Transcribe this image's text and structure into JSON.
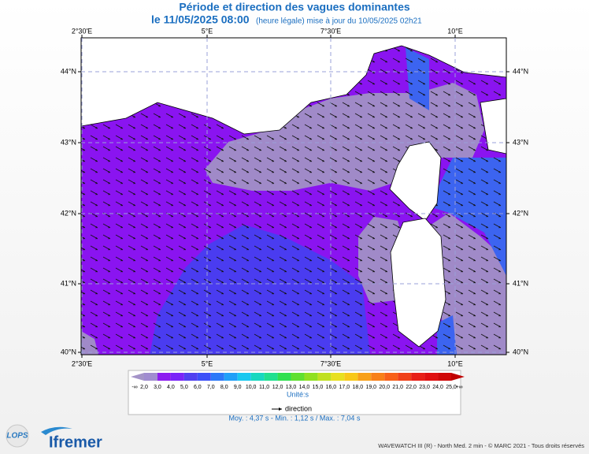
{
  "header": {
    "title": "Période et direction des vagues dominantes",
    "date": "le 11/05/2025 08:00",
    "update": "(heure légale) mise à jour du 10/05/2025 02h21"
  },
  "map": {
    "top_labels": [
      "2°30'E",
      "5°E",
      "7°30'E",
      "10°E"
    ],
    "bottom_labels": [
      "2°30'E",
      "5°E",
      "7°30'E",
      "10°E"
    ],
    "left_labels": [
      "44°N",
      "43°N",
      "42°N",
      "41°N",
      "40°N"
    ],
    "right_labels": [
      "44°N",
      "43°N",
      "42°N",
      "41°N",
      "40°N"
    ]
  },
  "legend": {
    "low": "-∞",
    "high": "+∞",
    "labels": [
      "2,0",
      "3,0",
      "4,0",
      "5,0",
      "6,0",
      "7,0",
      "8,0",
      "9,0",
      "10,0",
      "11,0",
      "12,0",
      "13,0",
      "14,0",
      "15,0",
      "16,0",
      "17,0",
      "18,0",
      "19,0",
      "20,0",
      "21,0",
      "22,0",
      "23,0",
      "24,0",
      "25,0"
    ],
    "colors": [
      "#a494c8",
      "#a08cd0",
      "#8c1cf0",
      "#7a24f8",
      "#5040f0",
      "#3c50f8",
      "#2c78f8",
      "#20a0f8",
      "#18c8f0",
      "#18d8c0",
      "#20e090",
      "#30e050",
      "#60e030",
      "#90e020",
      "#c0e020",
      "#e8e020",
      "#f8c818",
      "#f8a018",
      "#f88018",
      "#f86018",
      "#f04018",
      "#e82018",
      "#e01010",
      "#d00808",
      "#c00000"
    ],
    "unit": "Unité:s",
    "direction": "direction",
    "stats": "Moy. : 4,37 s   -   Min. : 1,12 s / Max. : 7,04 s"
  },
  "footer": {
    "credit": "WAVEWATCH III (R) - North Med. 2 min - © MARC 2021 - Tous droits réservés",
    "logo_left": "LOPS",
    "logo_right": "Ifremer"
  }
}
